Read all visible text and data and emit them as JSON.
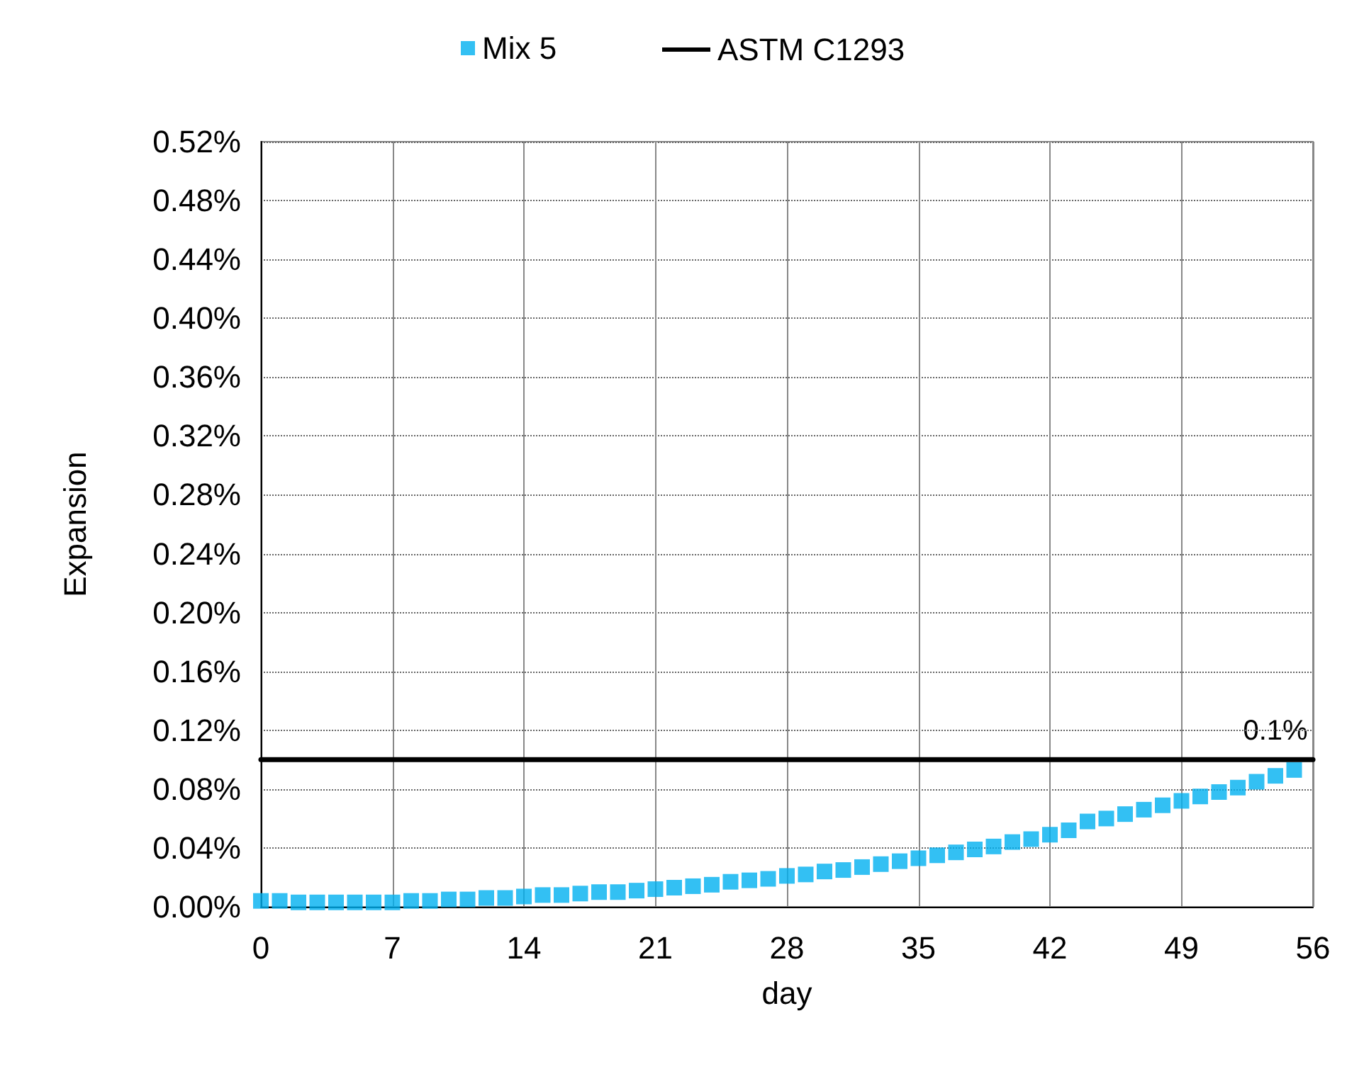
{
  "chart_data": {
    "type": "scatter",
    "xlabel": "day",
    "ylabel": "Expansion",
    "xlim": [
      0,
      56
    ],
    "xticks": [
      0,
      7,
      14,
      21,
      28,
      35,
      42,
      49,
      56
    ],
    "ylim": [
      0,
      0.52
    ],
    "yticks": [
      {
        "value": 0,
        "label": "0.00%"
      },
      {
        "value": 0.04,
        "label": "0.04%"
      },
      {
        "value": 0.08,
        "label": "0.08%"
      },
      {
        "value": 0.12,
        "label": "0.12%"
      },
      {
        "value": 0.16,
        "label": "0.16%"
      },
      {
        "value": 0.2,
        "label": "0.20%"
      },
      {
        "value": 0.24,
        "label": "0.24%"
      },
      {
        "value": 0.28,
        "label": "0.28%"
      },
      {
        "value": 0.32,
        "label": "0.32%"
      },
      {
        "value": 0.36,
        "label": "0.36%"
      },
      {
        "value": 0.4,
        "label": "0.40%"
      },
      {
        "value": 0.44,
        "label": "0.44%"
      },
      {
        "value": 0.48,
        "label": "0.48%"
      },
      {
        "value": 0.52,
        "label": "0.52%"
      }
    ],
    "grid": true,
    "legend": "top",
    "marker": "square",
    "series": [
      {
        "name": "Mix 5",
        "color": "#00b0f0",
        "x": [
          0,
          1,
          2,
          3,
          4,
          5,
          6,
          7,
          8,
          9,
          10,
          11,
          12,
          13,
          14,
          15,
          16,
          17,
          18,
          19,
          20,
          21,
          22,
          23,
          24,
          25,
          26,
          27,
          28,
          29,
          30,
          31,
          32,
          33,
          34,
          35,
          36,
          37,
          38,
          39,
          40,
          41,
          42,
          43,
          44,
          45,
          46,
          47,
          48,
          49,
          50,
          51,
          52,
          53,
          54,
          55
        ],
        "values": [
          0.004,
          0.004,
          0.003,
          0.003,
          0.003,
          0.003,
          0.003,
          0.003,
          0.004,
          0.004,
          0.005,
          0.005,
          0.006,
          0.006,
          0.007,
          0.008,
          0.008,
          0.009,
          0.01,
          0.01,
          0.011,
          0.012,
          0.013,
          0.014,
          0.015,
          0.017,
          0.018,
          0.019,
          0.021,
          0.022,
          0.024,
          0.025,
          0.027,
          0.029,
          0.031,
          0.033,
          0.035,
          0.037,
          0.039,
          0.041,
          0.044,
          0.046,
          0.049,
          0.052,
          0.058,
          0.06,
          0.063,
          0.066,
          0.069,
          0.072,
          0.075,
          0.078,
          0.081,
          0.085,
          0.089,
          0.093
        ]
      },
      {
        "name": "ASTM C1293",
        "type": "line",
        "color": "#000000",
        "line_style": "solid",
        "marker": "none",
        "x": [
          0,
          56
        ],
        "values": [
          0.1,
          0.1
        ]
      }
    ],
    "annotations": [
      {
        "text": "0.1%",
        "x": 54,
        "y": 0.1
      }
    ]
  }
}
